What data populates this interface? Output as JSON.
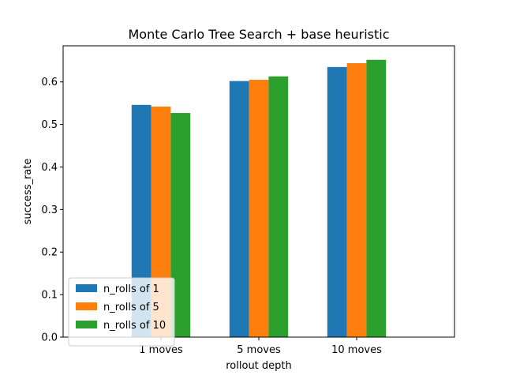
{
  "chart_data": {
    "type": "bar",
    "title": "Monte Carlo Tree Search + base heuristic",
    "xlabel": "rollout depth",
    "ylabel": "success_rate",
    "categories": [
      "1 moves",
      "5 moves",
      "10 moves"
    ],
    "series": [
      {
        "name": "n_rolls of 1",
        "color": "#1f77b4",
        "values": [
          0.546,
          0.602,
          0.635
        ]
      },
      {
        "name": "n_rolls of 5",
        "color": "#ff7f0e",
        "values": [
          0.542,
          0.605,
          0.644
        ]
      },
      {
        "name": "n_rolls of 10",
        "color": "#2ca02c",
        "values": [
          0.527,
          0.613,
          0.652
        ]
      }
    ],
    "ylim": [
      0,
      0.6849
    ],
    "yticks": [
      0.0,
      0.1,
      0.2,
      0.3,
      0.4,
      0.5,
      0.6
    ],
    "ytick_labels": [
      "0.0",
      "0.1",
      "0.2",
      "0.3",
      "0.4",
      "0.5",
      "0.6"
    ],
    "grid": false,
    "legend_position": "lower-left"
  }
}
